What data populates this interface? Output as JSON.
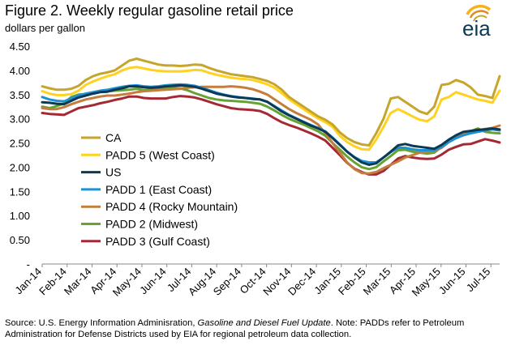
{
  "header": {
    "title": "Figure 2. Weekly regular gasoline retail price",
    "subtitle": "dollars per gallon"
  },
  "logo": {
    "text": "eia",
    "icon": "eia-sun-logo"
  },
  "source": {
    "prefix": "Source: U.S. Energy Information Adminisration, ",
    "publication": "Gasoline and Diesel Fuel Update",
    "suffix": ".  Note: PADDs refer to Petroleum Administration for Defense Districts used by EIA for regional petroleum data collection."
  },
  "chart_data": {
    "type": "line",
    "title": "Figure 2. Weekly regular gasoline retail price",
    "ylabel": "dollars per gallon",
    "xlabel": "",
    "ylim": [
      0,
      4.5
    ],
    "yticks": [
      "-",
      "0.50",
      "1.00",
      "1.50",
      "2.00",
      "2.50",
      "3.00",
      "3.50",
      "4.00",
      "4.50"
    ],
    "grid": false,
    "legend_position": "lower-left",
    "x_start": "Jan-14",
    "x_labels": [
      "Jan-14",
      "Feb-14",
      "Mar-14",
      "Apr-14",
      "May-14",
      "Jun-14",
      "Jul-14",
      "Aug-14",
      "Sep-14",
      "Oct-14",
      "Nov-14",
      "Dec-14",
      "Jan-15",
      "Feb-15",
      "Mar-15",
      "Apr-15",
      "May-15",
      "Jun-15",
      "Jul-15"
    ],
    "series": [
      {
        "name": "CA",
        "color": "#c7a52a",
        "values": [
          3.67,
          3.63,
          3.6,
          3.6,
          3.62,
          3.68,
          3.8,
          3.88,
          3.93,
          3.96,
          4.0,
          4.1,
          4.2,
          4.24,
          4.2,
          4.16,
          4.12,
          4.1,
          4.1,
          4.09,
          4.1,
          4.12,
          4.11,
          4.05,
          4.0,
          3.96,
          3.92,
          3.9,
          3.88,
          3.86,
          3.82,
          3.78,
          3.71,
          3.6,
          3.45,
          3.35,
          3.25,
          3.15,
          3.05,
          2.98,
          2.88,
          2.72,
          2.6,
          2.52,
          2.47,
          2.45,
          2.7,
          3.0,
          3.42,
          3.45,
          3.35,
          3.25,
          3.15,
          3.1,
          3.25,
          3.7,
          3.72,
          3.8,
          3.75,
          3.65,
          3.5,
          3.47,
          3.43,
          3.88
        ]
      },
      {
        "name": "PADD 5 (West Coast)",
        "color": "#ffd21f",
        "values": [
          3.57,
          3.52,
          3.49,
          3.49,
          3.51,
          3.58,
          3.7,
          3.77,
          3.83,
          3.88,
          3.92,
          4.0,
          4.05,
          4.07,
          4.04,
          4.01,
          3.99,
          3.98,
          3.98,
          3.98,
          3.99,
          4.01,
          4.0,
          3.95,
          3.91,
          3.88,
          3.85,
          3.83,
          3.82,
          3.8,
          3.76,
          3.71,
          3.64,
          3.53,
          3.4,
          3.3,
          3.2,
          3.1,
          3.01,
          2.93,
          2.83,
          2.65,
          2.52,
          2.43,
          2.37,
          2.36,
          2.57,
          2.83,
          3.12,
          3.2,
          3.13,
          3.05,
          2.98,
          2.95,
          3.05,
          3.4,
          3.45,
          3.55,
          3.5,
          3.45,
          3.4,
          3.37,
          3.33,
          3.58
        ]
      },
      {
        "name": "US",
        "color": "#0c3954",
        "values": [
          3.34,
          3.33,
          3.31,
          3.3,
          3.37,
          3.44,
          3.48,
          3.52,
          3.55,
          3.56,
          3.6,
          3.63,
          3.67,
          3.67,
          3.65,
          3.64,
          3.65,
          3.67,
          3.68,
          3.69,
          3.68,
          3.66,
          3.62,
          3.57,
          3.52,
          3.49,
          3.46,
          3.44,
          3.43,
          3.41,
          3.4,
          3.35,
          3.25,
          3.15,
          3.07,
          3.0,
          2.93,
          2.86,
          2.8,
          2.73,
          2.6,
          2.46,
          2.32,
          2.2,
          2.1,
          2.05,
          2.08,
          2.2,
          2.32,
          2.45,
          2.48,
          2.44,
          2.42,
          2.4,
          2.38,
          2.46,
          2.57,
          2.66,
          2.73,
          2.75,
          2.77,
          2.78,
          2.8,
          2.78
        ]
      },
      {
        "name": "PADD 1 (East Coast)",
        "color": "#1e90d4",
        "values": [
          3.45,
          3.4,
          3.37,
          3.36,
          3.42,
          3.48,
          3.52,
          3.55,
          3.58,
          3.6,
          3.63,
          3.66,
          3.68,
          3.69,
          3.67,
          3.66,
          3.67,
          3.69,
          3.7,
          3.71,
          3.7,
          3.68,
          3.64,
          3.59,
          3.54,
          3.5,
          3.47,
          3.45,
          3.43,
          3.42,
          3.4,
          3.35,
          3.26,
          3.17,
          3.08,
          3.01,
          2.94,
          2.87,
          2.81,
          2.74,
          2.61,
          2.47,
          2.32,
          2.21,
          2.13,
          2.1,
          2.1,
          2.2,
          2.31,
          2.4,
          2.4,
          2.37,
          2.35,
          2.35,
          2.35,
          2.42,
          2.52,
          2.6,
          2.66,
          2.7,
          2.73,
          2.76,
          2.78,
          2.76
        ]
      },
      {
        "name": "PADD 4 (Rocky Mountain)",
        "color": "#c47d3c",
        "values": [
          3.22,
          3.2,
          3.2,
          3.24,
          3.3,
          3.35,
          3.4,
          3.43,
          3.46,
          3.48,
          3.48,
          3.5,
          3.52,
          3.55,
          3.57,
          3.58,
          3.59,
          3.6,
          3.61,
          3.62,
          3.64,
          3.65,
          3.66,
          3.66,
          3.66,
          3.66,
          3.67,
          3.66,
          3.64,
          3.61,
          3.56,
          3.5,
          3.4,
          3.3,
          3.2,
          3.12,
          3.05,
          2.98,
          2.88,
          2.7,
          2.5,
          2.3,
          2.1,
          1.96,
          1.88,
          1.87,
          1.9,
          1.98,
          2.05,
          2.12,
          2.2,
          2.25,
          2.3,
          2.32,
          2.33,
          2.4,
          2.52,
          2.62,
          2.68,
          2.72,
          2.76,
          2.79,
          2.81,
          2.86
        ]
      },
      {
        "name": "PADD 2 (Midwest)",
        "color": "#65a332",
        "values": [
          3.25,
          3.22,
          3.26,
          3.32,
          3.45,
          3.5,
          3.51,
          3.54,
          3.56,
          3.57,
          3.58,
          3.59,
          3.6,
          3.62,
          3.59,
          3.6,
          3.63,
          3.64,
          3.64,
          3.63,
          3.59,
          3.53,
          3.48,
          3.43,
          3.4,
          3.38,
          3.37,
          3.36,
          3.35,
          3.33,
          3.31,
          3.25,
          3.17,
          3.08,
          3.0,
          2.94,
          2.88,
          2.81,
          2.74,
          2.65,
          2.5,
          2.36,
          2.22,
          2.1,
          2.0,
          1.96,
          2.0,
          2.12,
          2.23,
          2.35,
          2.36,
          2.32,
          2.3,
          2.28,
          2.3,
          2.42,
          2.56,
          2.64,
          2.7,
          2.74,
          2.8,
          2.73,
          2.71,
          2.7
        ]
      },
      {
        "name": "PADD 3 (Gulf Coast)",
        "color": "#a32a35",
        "values": [
          3.12,
          3.1,
          3.09,
          3.08,
          3.15,
          3.22,
          3.25,
          3.28,
          3.32,
          3.35,
          3.39,
          3.42,
          3.46,
          3.46,
          3.43,
          3.42,
          3.42,
          3.42,
          3.45,
          3.47,
          3.46,
          3.44,
          3.4,
          3.35,
          3.3,
          3.26,
          3.22,
          3.2,
          3.19,
          3.18,
          3.16,
          3.1,
          3.01,
          2.93,
          2.87,
          2.82,
          2.76,
          2.7,
          2.63,
          2.55,
          2.4,
          2.25,
          2.09,
          1.97,
          1.9,
          1.85,
          1.85,
          1.92,
          2.05,
          2.18,
          2.23,
          2.2,
          2.18,
          2.17,
          2.18,
          2.26,
          2.36,
          2.42,
          2.47,
          2.48,
          2.53,
          2.58,
          2.55,
          2.51
        ]
      }
    ]
  }
}
